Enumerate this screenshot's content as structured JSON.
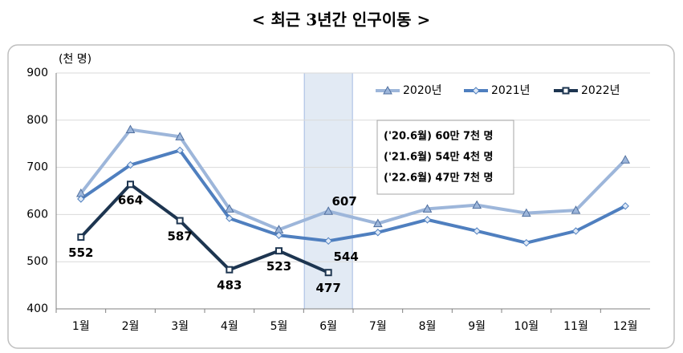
{
  "chart_data": {
    "type": "line",
    "title": "< 최근 3년간 인구이동 >",
    "y_label": "(천 명)",
    "categories": [
      "1월",
      "2월",
      "3월",
      "4월",
      "5월",
      "6월",
      "7월",
      "8월",
      "9월",
      "10월",
      "11월",
      "12월"
    ],
    "series": [
      {
        "name": "2020년",
        "color": "#9db6da",
        "marker": "triangle",
        "values": [
          645,
          780,
          765,
          612,
          568,
          607,
          581,
          612,
          620,
          603,
          609,
          716
        ],
        "value_labels": [
          null,
          null,
          null,
          null,
          null,
          "607",
          null,
          null,
          null,
          null,
          null,
          null
        ]
      },
      {
        "name": "2021년",
        "color": "#4f7fbf",
        "marker": "diamond",
        "values": [
          633,
          705,
          736,
          592,
          556,
          544,
          562,
          589,
          565,
          540,
          565,
          618
        ],
        "value_labels": [
          null,
          null,
          null,
          null,
          null,
          "544",
          null,
          null,
          null,
          null,
          null,
          null
        ]
      },
      {
        "name": "2022년",
        "color": "#1d3550",
        "marker": "square",
        "values": [
          552,
          664,
          587,
          483,
          523,
          477,
          null,
          null,
          null,
          null,
          null,
          null
        ],
        "value_labels": [
          "552",
          "664",
          "587",
          "483",
          "523",
          "477",
          null,
          null,
          null,
          null,
          null,
          null
        ]
      }
    ],
    "annotations": [
      "('20.6월) 60만 7천 명",
      "('21.6월) 54만 4천 명",
      "('22.6월) 47만 7천 명"
    ],
    "ylim": [
      400,
      900
    ],
    "yticks": [
      400,
      500,
      600,
      700,
      800,
      900
    ],
    "grid": true,
    "legend": "top-right"
  }
}
